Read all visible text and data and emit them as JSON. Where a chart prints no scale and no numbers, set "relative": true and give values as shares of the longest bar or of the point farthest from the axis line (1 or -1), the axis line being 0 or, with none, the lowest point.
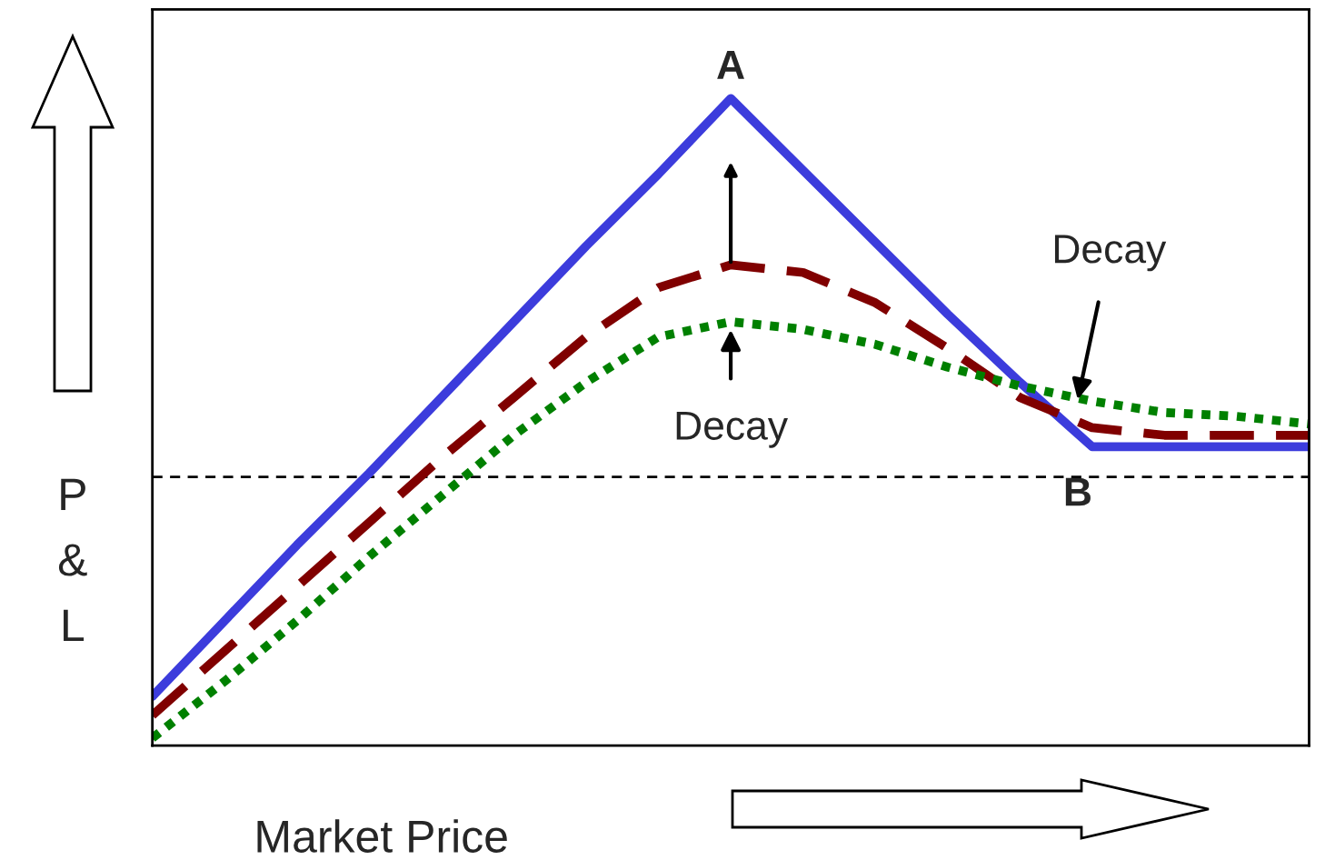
{
  "chart_data": {
    "type": "line",
    "relative": true,
    "xlabel": "Market Price",
    "ylabel": "P\n&\nL",
    "categories": [
      null,
      null,
      null,
      null,
      null,
      null,
      null,
      null,
      null,
      null,
      null,
      null,
      null,
      null,
      null,
      null,
      null
    ],
    "series": [
      {
        "color": "#3c3cdc",
        "line_style": "solid",
        "values": [
          -0.58,
          -0.38,
          -0.18,
          0.01,
          0.21,
          0.41,
          0.61,
          0.8,
          1.0,
          0.81,
          0.62,
          0.43,
          0.25,
          0.08,
          0.08,
          0.08,
          0.08
        ]
      },
      {
        "color": "#800000",
        "line_style": "dashed",
        "values": [
          -0.63,
          -0.46,
          -0.29,
          -0.12,
          0.05,
          0.21,
          0.37,
          0.5,
          0.56,
          0.54,
          0.46,
          0.34,
          0.21,
          0.13,
          0.11,
          0.11,
          0.11
        ]
      },
      {
        "color": "#008000",
        "line_style": "dotted",
        "values": [
          -0.69,
          -0.54,
          -0.38,
          -0.21,
          -0.05,
          0.11,
          0.25,
          0.37,
          0.41,
          0.39,
          0.35,
          0.29,
          0.24,
          0.2,
          0.17,
          0.16,
          0.14
        ]
      }
    ],
    "ref_lines": [
      {
        "axis": "y",
        "value": 0,
        "color": "#000000",
        "line_style": "dashed"
      }
    ],
    "annotations": [
      "A",
      "B",
      "Decay",
      "Decay"
    ],
    "legend": false,
    "marker": "none"
  }
}
